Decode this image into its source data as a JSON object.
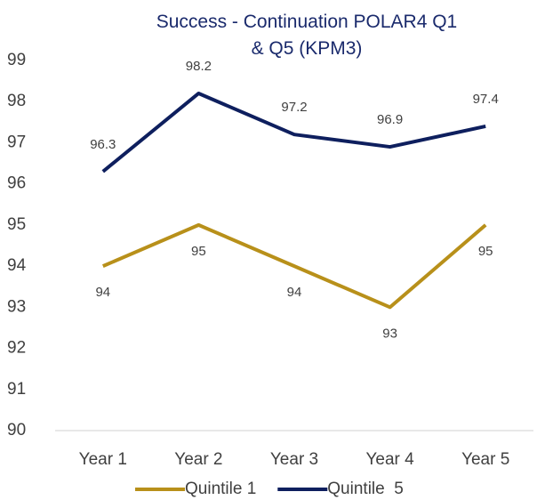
{
  "chart_data": {
    "type": "line",
    "title": "Success - Continuation POLAR4 Q1 & Q5 (KPM3)",
    "categories": [
      "Year 1",
      "Year 2",
      "Year 3",
      "Year 4",
      "Year 5"
    ],
    "series": [
      {
        "name": "Quintile 1",
        "color": "#b8901a",
        "values": [
          94,
          95,
          94,
          93,
          95
        ]
      },
      {
        "name": "Quintile  5",
        "color": "#0e1f5e",
        "values": [
          96.3,
          98.2,
          97.2,
          96.9,
          97.4
        ]
      }
    ],
    "ylim": [
      90,
      99
    ],
    "yticks": [
      90,
      91,
      92,
      93,
      94,
      95,
      96,
      97,
      98,
      99
    ],
    "grid": false
  }
}
